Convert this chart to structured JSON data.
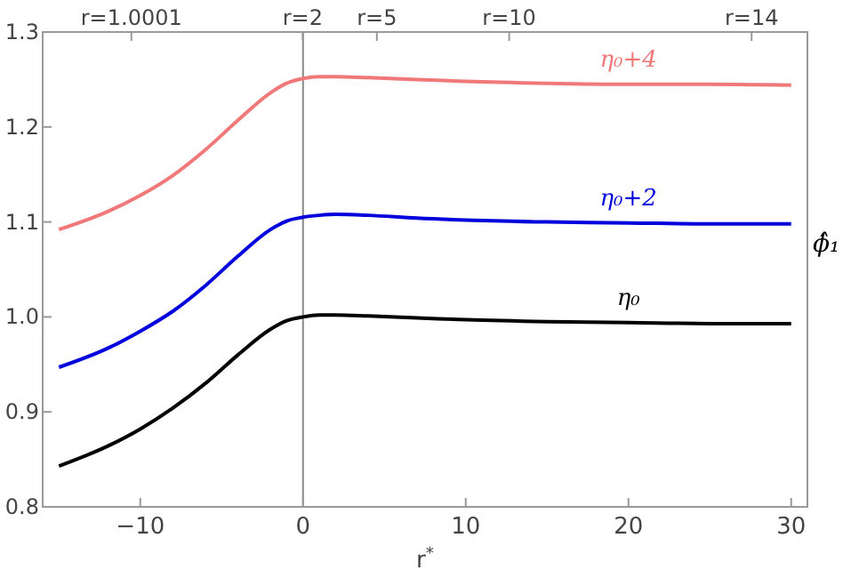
{
  "chart_data": {
    "type": "line",
    "xlabel": "r$^{*}$",
    "ylabel": "ϕ̂₁",
    "x": [
      -15,
      -12,
      -10,
      -8,
      -6,
      -4,
      -2,
      -1,
      0,
      1,
      2,
      4,
      7,
      10,
      15,
      20,
      25,
      30
    ],
    "series": [
      {
        "name": "η₀",
        "color": "#000000",
        "values": [
          0.843,
          0.864,
          0.882,
          0.904,
          0.93,
          0.96,
          0.987,
          0.996,
          1.0,
          1.002,
          1.002,
          1.001,
          0.999,
          0.997,
          0.995,
          0.994,
          0.993,
          0.993
        ]
      },
      {
        "name": "η₀+2",
        "color": "#0000dd",
        "values": [
          0.947,
          0.967,
          0.985,
          1.006,
          1.033,
          1.064,
          1.092,
          1.101,
          1.105,
          1.107,
          1.108,
          1.107,
          1.104,
          1.102,
          1.1,
          1.099,
          1.098,
          1.098
        ]
      },
      {
        "name": "η₀+4",
        "color": "#f07878",
        "values": [
          1.092,
          1.111,
          1.128,
          1.149,
          1.176,
          1.207,
          1.236,
          1.246,
          1.251,
          1.253,
          1.253,
          1.252,
          1.25,
          1.248,
          1.246,
          1.245,
          1.245,
          1.244
        ]
      }
    ],
    "xlim": [
      -16,
      31
    ],
    "xticks": [
      -10,
      0,
      10,
      20,
      30
    ],
    "annotations": [
      "r=1.0001",
      "r=2",
      "r=5",
      "r=10",
      "r=14"
    ],
    "ylim": [
      0.8,
      1.3
    ],
    "yticks": [
      0.8,
      0.9,
      {
        "value": 1,
        "label": "1.0"
      },
      1.1,
      1.2,
      1.3
    ],
    "ref_lines": [
      {
        "axis": "x",
        "value": 0,
        "color": "#888888"
      }
    ],
    "grid": false,
    "line_style": "solid",
    "marker": "none"
  }
}
